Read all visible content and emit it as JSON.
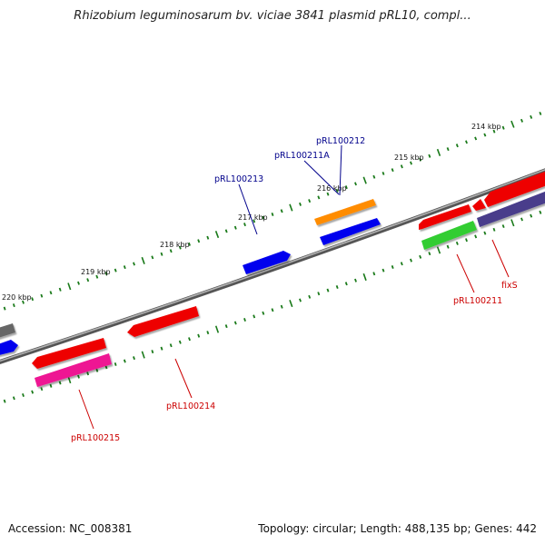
{
  "header": {
    "title": "Rhizobium leguminosarum bv. viciae 3841 plasmid pRL10, compl..."
  },
  "footer": {
    "accession": "Accession: NC_008381",
    "summary": "Topology: circular; Length: 488,135 bp; Genes: 442"
  },
  "colors": {
    "backbone": "#8a8a8a",
    "tick": "#1a7a1a",
    "label_plus": "#00008b",
    "label_minus": "#cc0000"
  },
  "ticks": [
    {
      "label": "214 kbp"
    },
    {
      "label": "215 kbp"
    },
    {
      "label": "216 kbp"
    },
    {
      "label": "217 kbp"
    },
    {
      "label": "218 kbp"
    },
    {
      "label": "219 kbp"
    },
    {
      "label": "220 kbp"
    }
  ],
  "features_plus": [
    {
      "name": "pRL100212",
      "color": "#ff8c00"
    },
    {
      "name": "pRL100211A",
      "color": "#0000ee"
    },
    {
      "name": "pRL100213",
      "color": "#0000ee"
    }
  ],
  "features_minus": [
    {
      "name": "pRL100211",
      "color": "#ee0000"
    },
    {
      "name": "fixS",
      "color": "#ee0000"
    },
    {
      "name": "pRL100214",
      "color": "#ee0000"
    },
    {
      "name": "pRL100215",
      "color": "#ee0000"
    }
  ],
  "unlabeled_features": [
    {
      "color": "#32cd32"
    },
    {
      "color": "#483d8b"
    },
    {
      "color": "#ee1493"
    },
    {
      "color": "#666666"
    }
  ]
}
